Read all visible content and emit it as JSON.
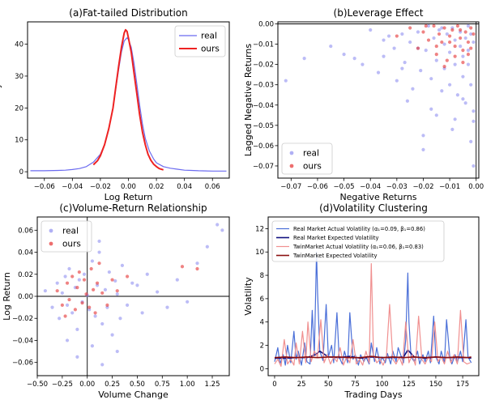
{
  "chart_data": [
    {
      "type": "line",
      "title": "(a)Fat-tailed Distribution",
      "xlabel": "Log Return",
      "ylabel": "Density",
      "xlim": [
        -0.072,
        0.072
      ],
      "ylim": [
        -2,
        47
      ],
      "xticks": [
        -0.06,
        -0.04,
        -0.02,
        0.0,
        0.02,
        0.04,
        0.06
      ],
      "xtick_labels": [
        "−0.06",
        "−0.04",
        "−0.02",
        "0.00",
        "0.02",
        "0.04",
        "0.06"
      ],
      "yticks": [
        0,
        10,
        20,
        30,
        40
      ],
      "ytick_labels": [
        "0",
        "10",
        "20",
        "30",
        "40"
      ],
      "legend": "top-right",
      "series": [
        {
          "name": "real",
          "color": "#6b6bf0",
          "x": [
            -0.07,
            -0.06,
            -0.05,
            -0.045,
            -0.04,
            -0.035,
            -0.03,
            -0.025,
            -0.02,
            -0.017,
            -0.014,
            -0.011,
            -0.009,
            -0.007,
            -0.005,
            -0.003,
            -0.001,
            0.0,
            0.002,
            0.004,
            0.006,
            0.008,
            0.01,
            0.012,
            0.015,
            0.018,
            0.02,
            0.025,
            0.03,
            0.035,
            0.04,
            0.045,
            0.05,
            0.06,
            0.07
          ],
          "y": [
            0.3,
            0.3,
            0.4,
            0.5,
            0.7,
            1.0,
            1.6,
            3.0,
            5.5,
            8.5,
            13.5,
            20.0,
            26.0,
            32.0,
            37.5,
            41.0,
            42.0,
            41.5,
            39.0,
            34.0,
            27.5,
            21.0,
            15.0,
            10.5,
            6.5,
            4.0,
            2.8,
            1.6,
            1.1,
            0.8,
            0.5,
            0.4,
            0.3,
            0.2,
            0.2
          ]
        },
        {
          "name": "ours",
          "color": "#ee2222",
          "x": [
            -0.025,
            -0.022,
            -0.02,
            -0.017,
            -0.014,
            -0.011,
            -0.009,
            -0.007,
            -0.005,
            -0.003,
            -0.002,
            -0.001,
            0.0,
            0.002,
            0.004,
            0.006,
            0.008,
            0.01,
            0.012,
            0.014,
            0.016,
            0.018,
            0.02,
            0.022,
            0.025
          ],
          "y": [
            2.2,
            3.5,
            5.0,
            8.5,
            13.5,
            20.0,
            26.5,
            33.0,
            39.0,
            43.5,
            44.5,
            44.0,
            42.0,
            37.5,
            31.0,
            24.5,
            18.0,
            12.5,
            8.5,
            5.5,
            3.6,
            2.4,
            1.6,
            1.0,
            0.6
          ]
        }
      ]
    },
    {
      "type": "scatter",
      "title": "(b)Leverage Effect",
      "xlabel": "Negative Returns",
      "ylabel": "Lagged Negative Returns",
      "xlim": [
        -0.075,
        0.001
      ],
      "ylim": [
        -0.076,
        0.001
      ],
      "xticks": [
        -0.07,
        -0.06,
        -0.05,
        -0.04,
        -0.03,
        -0.02,
        -0.01,
        0.0
      ],
      "xtick_labels": [
        "−0.07",
        "−0.06",
        "−0.05",
        "−0.04",
        "−0.03",
        "−0.02",
        "−0.01",
        "0.00"
      ],
      "yticks": [
        0.0,
        -0.01,
        -0.02,
        -0.03,
        -0.04,
        -0.05,
        -0.06,
        -0.07
      ],
      "ytick_labels": [
        "0.00",
        "−0.01",
        "−0.02",
        "−0.03",
        "−0.04",
        "−0.05",
        "−0.06",
        "−0.07"
      ],
      "reference_lines": {
        "x": 0.0,
        "y": 0.0
      },
      "legend": "bottom-left",
      "series": [
        {
          "name": "real",
          "color": "#8f8ff0",
          "x": [
            -0.072,
            -0.065,
            -0.055,
            -0.05,
            -0.046,
            -0.043,
            -0.04,
            -0.037,
            -0.035,
            -0.033,
            -0.031,
            -0.03,
            -0.028,
            -0.027,
            -0.026,
            -0.025,
            -0.024,
            -0.022,
            -0.021,
            -0.02,
            -0.019,
            -0.018,
            -0.017,
            -0.016,
            -0.015,
            -0.015,
            -0.014,
            -0.013,
            -0.012,
            -0.012,
            -0.011,
            -0.01,
            -0.009,
            -0.009,
            -0.008,
            -0.008,
            -0.007,
            -0.006,
            -0.006,
            -0.005,
            -0.005,
            -0.004,
            -0.004,
            -0.003,
            -0.003,
            -0.002,
            -0.002,
            -0.001,
            -0.001,
            -0.001,
            -0.017,
            -0.02,
            -0.005,
            -0.01,
            -0.022,
            -0.028,
            -0.003,
            -0.013,
            -0.001,
            -0.008,
            -0.002,
            -0.035
          ],
          "y": [
            -0.028,
            -0.017,
            -0.011,
            -0.015,
            -0.017,
            -0.02,
            -0.003,
            -0.024,
            -0.016,
            -0.006,
            -0.012,
            -0.028,
            -0.005,
            -0.019,
            -0.038,
            -0.009,
            -0.032,
            -0.004,
            -0.023,
            -0.062,
            -0.013,
            -0.001,
            -0.027,
            -0.007,
            -0.045,
            -0.018,
            -0.003,
            -0.033,
            -0.01,
            -0.022,
            -0.005,
            -0.014,
            -0.052,
            -0.002,
            -0.02,
            -0.008,
            -0.035,
            -0.011,
            -0.004,
            -0.026,
            -0.016,
            -0.007,
            -0.039,
            -0.001,
            -0.013,
            -0.03,
            -0.005,
            -0.043,
            -0.048,
            -0.009,
            -0.042,
            -0.055,
            -0.037,
            -0.03,
            -0.012,
            -0.022,
            -0.02,
            -0.002,
            -0.07,
            -0.047,
            -0.058,
            -0.008
          ]
        },
        {
          "name": "ours",
          "color": "#e53030",
          "x": [
            -0.03,
            -0.025,
            -0.022,
            -0.02,
            -0.018,
            -0.016,
            -0.015,
            -0.014,
            -0.013,
            -0.012,
            -0.011,
            -0.01,
            -0.009,
            -0.008,
            -0.007,
            -0.006,
            -0.005,
            -0.004,
            -0.003,
            -0.002,
            -0.001,
            -0.012,
            -0.008,
            -0.005,
            -0.015,
            -0.003,
            -0.019,
            -0.006,
            -0.002,
            -0.01
          ],
          "y": [
            -0.006,
            -0.002,
            -0.012,
            -0.004,
            -0.008,
            -0.001,
            -0.015,
            -0.005,
            -0.009,
            -0.002,
            -0.018,
            -0.006,
            -0.003,
            -0.011,
            -0.001,
            -0.007,
            -0.013,
            -0.004,
            -0.009,
            -0.002,
            -0.005,
            -0.021,
            -0.016,
            -0.019,
            -0.011,
            -0.015,
            -0.001,
            -0.003,
            -0.012,
            -0.009
          ]
        }
      ]
    },
    {
      "type": "scatter",
      "title": "(c)Volume-Return Relationship",
      "xlabel": "Volume Change",
      "ylabel": "Log Return",
      "xlim": [
        -0.5,
        1.42
      ],
      "ylim": [
        -0.072,
        0.072
      ],
      "xticks": [
        -0.5,
        -0.25,
        0.0,
        0.25,
        0.5,
        0.75,
        1.0,
        1.25
      ],
      "xtick_labels": [
        "−0.50",
        "−0.25",
        "0.00",
        "0.25",
        "0.50",
        "0.75",
        "1.00",
        "1.25"
      ],
      "yticks": [
        -0.06,
        -0.04,
        -0.02,
        0.0,
        0.02,
        0.04,
        0.06
      ],
      "ytick_labels": [
        "−0.06",
        "−0.04",
        "−0.02",
        "0.00",
        "0.02",
        "0.04",
        "0.06"
      ],
      "reference_lines": {
        "x": 0.0,
        "y": 0.0
      },
      "legend": "top-left",
      "series": [
        {
          "name": "real",
          "color": "#8f8ff0",
          "x": [
            -0.42,
            -0.35,
            -0.3,
            -0.28,
            -0.25,
            -0.22,
            -0.2,
            -0.18,
            -0.15,
            -0.12,
            -0.1,
            -0.08,
            -0.05,
            -0.03,
            0.0,
            0.02,
            0.05,
            0.08,
            0.1,
            0.12,
            0.15,
            0.18,
            0.2,
            0.22,
            0.25,
            0.28,
            0.3,
            0.33,
            0.35,
            0.4,
            0.45,
            0.5,
            0.55,
            0.6,
            0.7,
            0.8,
            0.9,
            1.0,
            1.1,
            1.2,
            1.3,
            1.35,
            0.05,
            -0.1,
            0.15,
            -0.2,
            0.3,
            0.12
          ],
          "y": [
            0.005,
            -0.01,
            0.012,
            -0.02,
            0.003,
            0.018,
            -0.008,
            0.025,
            -0.015,
            0.008,
            -0.03,
            0.015,
            -0.005,
            0.02,
            0.001,
            -0.012,
            0.032,
            -0.018,
            0.01,
            0.04,
            -0.025,
            0.006,
            -0.01,
            0.022,
            -0.035,
            0.014,
            0.002,
            -0.02,
            0.028,
            -0.008,
            0.012,
            0.01,
            -0.015,
            0.02,
            0.004,
            -0.01,
            0.015,
            -0.005,
            0.03,
            0.045,
            0.065,
            0.06,
            -0.045,
            -0.055,
            -0.062,
            -0.04,
            -0.05,
            0.05
          ]
        },
        {
          "name": "ours",
          "color": "#e53030",
          "x": [
            -0.3,
            -0.25,
            -0.2,
            -0.18,
            -0.15,
            -0.12,
            -0.1,
            -0.08,
            -0.05,
            -0.03,
            -0.01,
            0.02,
            0.04,
            0.06,
            0.08,
            0.1,
            0.15,
            0.2,
            0.25,
            0.3,
            0.4,
            0.95,
            1.1,
            -0.22,
            0.12
          ],
          "y": [
            0.005,
            -0.008,
            0.012,
            -0.003,
            0.018,
            -0.012,
            0.008,
            0.022,
            -0.006,
            0.015,
            0.002,
            -0.01,
            0.025,
            0.006,
            -0.015,
            0.012,
            0.003,
            -0.008,
            0.015,
            0.005,
            0.018,
            0.027,
            0.025,
            -0.018,
            0.03
          ]
        }
      ]
    },
    {
      "type": "line",
      "title": "(d)Volatility Clustering",
      "xlabel": "Trading Days",
      "ylabel": "Volatility",
      "xlim": [
        -6,
        190
      ],
      "ylim": [
        -0.6,
        13
      ],
      "xticks": [
        0,
        25,
        50,
        75,
        100,
        125,
        150,
        175
      ],
      "xtick_labels": [
        "0",
        "25",
        "50",
        "75",
        "100",
        "125",
        "150",
        "175"
      ],
      "yticks": [
        0,
        2,
        4,
        6,
        8,
        10,
        12
      ],
      "ytick_labels": [
        "0",
        "2",
        "4",
        "6",
        "8",
        "10",
        "12"
      ],
      "legend": "top-left",
      "series": [
        {
          "name": "Real Market Actual Volatility (α₁=0.09, β₁=0.86)",
          "color": "#4a6fd8",
          "x": [
            0,
            3,
            5,
            8,
            10,
            12,
            15,
            18,
            20,
            22,
            25,
            28,
            30,
            33,
            35,
            37,
            39,
            40,
            42,
            45,
            48,
            50,
            53,
            55,
            58,
            60,
            63,
            65,
            68,
            70,
            73,
            75,
            78,
            80,
            83,
            85,
            88,
            90,
            93,
            95,
            98,
            100,
            103,
            105,
            108,
            110,
            113,
            115,
            118,
            120,
            122,
            124,
            125,
            127,
            130,
            133,
            135,
            138,
            140,
            143,
            145,
            148,
            150,
            153,
            155,
            158,
            160,
            163,
            165,
            168,
            170,
            173,
            175,
            178,
            180,
            183
          ],
          "y": [
            0.6,
            1.8,
            0.4,
            1.2,
            0.3,
            2.0,
            0.5,
            3.2,
            0.8,
            1.5,
            0.3,
            2.2,
            0.6,
            0.4,
            5.0,
            1.2,
            10.0,
            6.5,
            1.5,
            0.7,
            5.5,
            1.0,
            2.0,
            0.5,
            4.8,
            1.0,
            0.4,
            1.5,
            0.5,
            4.8,
            0.8,
            1.2,
            0.3,
            1.2,
            0.6,
            1.0,
            0.4,
            2.2,
            0.6,
            1.8,
            0.4,
            1.0,
            0.5,
            1.3,
            0.4,
            1.5,
            0.6,
            1.8,
            1.0,
            0.5,
            2.5,
            8.2,
            4.0,
            1.0,
            0.6,
            1.5,
            0.4,
            1.2,
            0.6,
            1.5,
            0.5,
            4.5,
            1.0,
            0.4,
            1.5,
            0.5,
            4.2,
            1.0,
            0.4,
            1.2,
            0.5,
            1.5,
            0.6,
            4.2,
            1.0,
            0.5
          ]
        },
        {
          "name": "Real Market Expected Volatility",
          "color": "#101080",
          "x": [
            0,
            10,
            20,
            30,
            38,
            42,
            50,
            60,
            70,
            80,
            90,
            100,
            110,
            120,
            124,
            130,
            140,
            150,
            160,
            170,
            180,
            183
          ],
          "y": [
            0.9,
            0.9,
            0.95,
            0.95,
            1.2,
            1.5,
            1.0,
            0.95,
            1.05,
            0.9,
            1.0,
            0.95,
            0.95,
            1.0,
            1.6,
            1.0,
            0.9,
            1.0,
            0.95,
            0.95,
            0.95,
            0.9
          ]
        },
        {
          "name": "TwinMarket Actual Volatility (α₁=0.06, β₁=0.83)",
          "color": "#f09090",
          "x": [
            0,
            3,
            6,
            9,
            12,
            15,
            18,
            20,
            23,
            26,
            29,
            31,
            34,
            37,
            40,
            43,
            46,
            49,
            52,
            55,
            58,
            61,
            64,
            67,
            70,
            73,
            76,
            79,
            82,
            85,
            88,
            90,
            92,
            95,
            98,
            101,
            104,
            107,
            110,
            113,
            116,
            119,
            122,
            125,
            128,
            131,
            134,
            137,
            140,
            143,
            146,
            149,
            152,
            155,
            158,
            161,
            164,
            167,
            170,
            173,
            176,
            179,
            182
          ],
          "y": [
            0.4,
            0.8,
            0.2,
            2.5,
            0.4,
            0.8,
            0.3,
            2.2,
            0.4,
            3.2,
            0.5,
            4.0,
            0.6,
            1.5,
            1.0,
            4.2,
            0.5,
            1.2,
            0.4,
            1.0,
            0.6,
            1.8,
            0.3,
            1.0,
            0.5,
            2.5,
            0.4,
            0.8,
            0.3,
            1.5,
            0.5,
            9.0,
            1.2,
            0.5,
            0.8,
            0.3,
            1.0,
            5.5,
            0.8,
            0.4,
            1.0,
            0.3,
            4.0,
            0.5,
            1.2,
            0.3,
            4.5,
            0.8,
            0.4,
            1.0,
            0.6,
            4.0,
            0.6,
            1.0,
            0.4,
            1.5,
            0.5,
            1.2,
            0.4,
            5.0,
            0.6,
            0.4,
            0.5
          ]
        },
        {
          "name": "TwinMarket Expected Volatility",
          "color": "#8b1010",
          "x": [
            0,
            10,
            20,
            30,
            40,
            50,
            60,
            70,
            80,
            90,
            100,
            110,
            120,
            130,
            140,
            150,
            160,
            170,
            180,
            183
          ],
          "y": [
            0.95,
            1.0,
            0.95,
            1.0,
            0.95,
            1.0,
            1.0,
            0.95,
            0.95,
            1.05,
            0.95,
            1.0,
            0.95,
            1.0,
            0.95,
            1.0,
            0.95,
            1.0,
            0.95,
            1.0
          ]
        }
      ]
    }
  ]
}
